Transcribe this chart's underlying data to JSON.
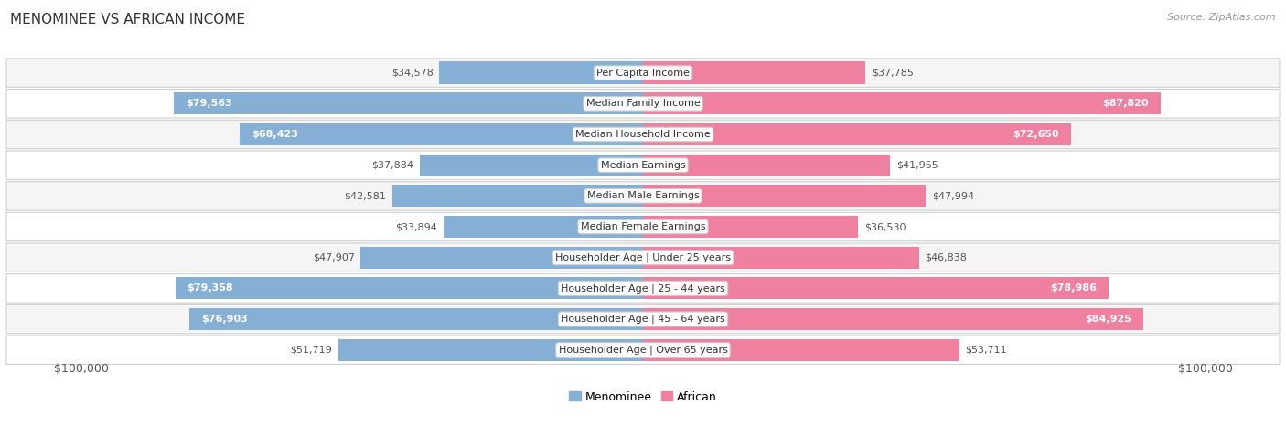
{
  "title": "MENOMINEE VS AFRICAN INCOME",
  "source": "Source: ZipAtlas.com",
  "categories": [
    "Per Capita Income",
    "Median Family Income",
    "Median Household Income",
    "Median Earnings",
    "Median Male Earnings",
    "Median Female Earnings",
    "Householder Age | Under 25 years",
    "Householder Age | 25 - 44 years",
    "Householder Age | 45 - 64 years",
    "Householder Age | Over 65 years"
  ],
  "menominee_values": [
    34578,
    79563,
    68423,
    37884,
    42581,
    33894,
    47907,
    79358,
    76903,
    51719
  ],
  "african_values": [
    37785,
    87820,
    72650,
    41955,
    47994,
    36530,
    46838,
    78986,
    84925,
    53711
  ],
  "menominee_labels": [
    "$34,578",
    "$79,563",
    "$68,423",
    "$37,884",
    "$42,581",
    "$33,894",
    "$47,907",
    "$79,358",
    "$76,903",
    "$51,719"
  ],
  "african_labels": [
    "$37,785",
    "$87,820",
    "$72,650",
    "$41,955",
    "$47,994",
    "$36,530",
    "$46,838",
    "$78,986",
    "$84,925",
    "$53,711"
  ],
  "max_value": 100000,
  "menominee_color": "#85afd4",
  "african_color": "#f080a0",
  "bg_color": "#ffffff",
  "row_bg_even": "#f5f5f5",
  "row_bg_odd": "#ffffff",
  "border_color": "#d0d0d0",
  "label_inside_threshold": 55000,
  "legend_menominee": "Menominee",
  "legend_african": "African",
  "axis_label_left": "$100,000",
  "axis_label_right": "$100,000",
  "cat_label_fontsize": 8,
  "val_label_fontsize": 8
}
